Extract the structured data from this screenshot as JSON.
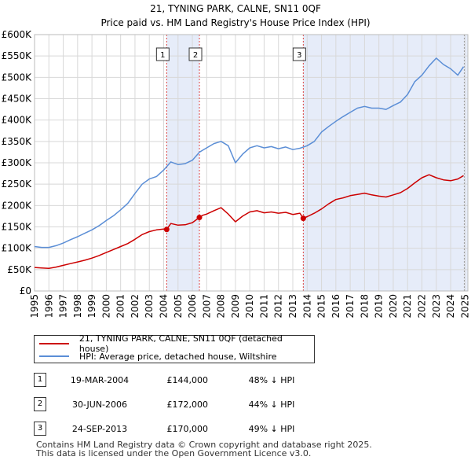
{
  "title": "21, TYNING PARK, CALNE, SN11 0QF",
  "subtitle": "Price paid vs. HM Land Registry's House Price Index (HPI)",
  "chart_data": {
    "type": "line",
    "title": "21, TYNING PARK, CALNE, SN11 0QF",
    "subtitle": "Price paid vs. HM Land Registry's House Price Index (HPI)",
    "xlabel": "",
    "ylabel": "",
    "xlim": [
      1995,
      2025.2
    ],
    "ylim": [
      0,
      600000
    ],
    "y_ticks": [
      0,
      50000,
      100000,
      150000,
      200000,
      250000,
      300000,
      350000,
      400000,
      450000,
      500000,
      550000,
      600000
    ],
    "y_tick_labels": [
      "£0",
      "£50K",
      "£100K",
      "£150K",
      "£200K",
      "£250K",
      "£300K",
      "£350K",
      "£400K",
      "£450K",
      "£500K",
      "£550K",
      "£600K"
    ],
    "x_ticks": [
      1995,
      1996,
      1997,
      1998,
      1999,
      2000,
      2001,
      2002,
      2003,
      2004,
      2005,
      2006,
      2007,
      2008,
      2009,
      2010,
      2011,
      2012,
      2013,
      2014,
      2015,
      2016,
      2017,
      2018,
      2019,
      2020,
      2021,
      2022,
      2023,
      2024,
      2025
    ],
    "grid": true,
    "series": [
      {
        "name": "21, TYNING PARK, CALNE, SN11 0QF (detached house)",
        "color": "#cc0000",
        "x": [
          1995.0,
          1995.5,
          1996.0,
          1996.5,
          1997.0,
          1997.5,
          1998.0,
          1998.5,
          1999.0,
          1999.5,
          2000.0,
          2000.5,
          2001.0,
          2001.5,
          2002.0,
          2002.5,
          2003.0,
          2003.5,
          2004.0,
          2004.21,
          2004.5,
          2005.0,
          2005.5,
          2006.0,
          2006.49,
          2006.7,
          2007.0,
          2007.5,
          2008.0,
          2008.5,
          2009.0,
          2009.5,
          2010.0,
          2010.5,
          2011.0,
          2011.5,
          2012.0,
          2012.5,
          2013.0,
          2013.5,
          2013.73,
          2014.0,
          2014.5,
          2015.0,
          2015.5,
          2016.0,
          2016.5,
          2017.0,
          2017.5,
          2018.0,
          2018.5,
          2019.0,
          2019.5,
          2020.0,
          2020.5,
          2021.0,
          2021.5,
          2022.0,
          2022.5,
          2023.0,
          2023.5,
          2024.0,
          2024.5,
          2024.9
        ],
        "values": [
          55000,
          54000,
          53000,
          56000,
          60000,
          64000,
          68000,
          72000,
          77000,
          83000,
          90000,
          97000,
          104000,
          111000,
          121000,
          132000,
          139000,
          143000,
          145000,
          144000,
          158000,
          154000,
          155000,
          160000,
          172000,
          177000,
          180000,
          188000,
          195000,
          180000,
          162000,
          175000,
          185000,
          188000,
          183000,
          185000,
          182000,
          184000,
          179000,
          182000,
          170000,
          174000,
          182000,
          192000,
          204000,
          214000,
          218000,
          223000,
          226000,
          229000,
          225000,
          222000,
          220000,
          225000,
          230000,
          240000,
          253000,
          265000,
          272000,
          265000,
          260000,
          258000,
          262000,
          270000
        ]
      },
      {
        "name": "HPI: Average price, detached house, Wiltshire",
        "color": "#5b8ed6",
        "x": [
          1995.0,
          1995.5,
          1996.0,
          1996.5,
          1997.0,
          1997.5,
          1998.0,
          1998.5,
          1999.0,
          1999.5,
          2000.0,
          2000.5,
          2001.0,
          2001.5,
          2002.0,
          2002.5,
          2003.0,
          2003.5,
          2004.0,
          2004.5,
          2005.0,
          2005.5,
          2006.0,
          2006.5,
          2007.0,
          2007.5,
          2008.0,
          2008.5,
          2009.0,
          2009.5,
          2010.0,
          2010.5,
          2011.0,
          2011.5,
          2012.0,
          2012.5,
          2013.0,
          2013.5,
          2014.0,
          2014.5,
          2015.0,
          2015.5,
          2016.0,
          2016.5,
          2017.0,
          2017.5,
          2018.0,
          2018.5,
          2019.0,
          2019.5,
          2020.0,
          2020.5,
          2021.0,
          2021.5,
          2022.0,
          2022.5,
          2023.0,
          2023.5,
          2024.0,
          2024.5,
          2024.9
        ],
        "values": [
          104000,
          102000,
          102000,
          106000,
          112000,
          120000,
          127000,
          135000,
          143000,
          153000,
          165000,
          176000,
          190000,
          205000,
          228000,
          250000,
          262000,
          268000,
          283000,
          302000,
          296000,
          298000,
          306000,
          325000,
          335000,
          345000,
          350000,
          340000,
          300000,
          320000,
          335000,
          340000,
          335000,
          338000,
          333000,
          337000,
          331000,
          334000,
          340000,
          350000,
          372000,
          385000,
          397000,
          408000,
          418000,
          428000,
          432000,
          428000,
          428000,
          425000,
          434000,
          442000,
          460000,
          490000,
          505000,
          527000,
          545000,
          530000,
          520000,
          505000,
          525000
        ]
      }
    ],
    "sale_markers": [
      {
        "label": "1",
        "x": 2004.21,
        "value": 144000
      },
      {
        "label": "2",
        "x": 2006.49,
        "value": 172000
      },
      {
        "label": "3",
        "x": 2013.73,
        "value": 170000
      }
    ],
    "shaded_spans": [
      [
        2004.21,
        2006.49
      ],
      [
        2013.73,
        2025.2
      ]
    ]
  },
  "legend": {
    "property_label": "21, TYNING PARK, CALNE, SN11 0QF (detached house)",
    "hpi_label": "HPI: Average price, detached house, Wiltshire"
  },
  "transactions": [
    {
      "num": "1",
      "date": "19-MAR-2004",
      "price": "£144,000",
      "hpi": "48% ↓ HPI"
    },
    {
      "num": "2",
      "date": "30-JUN-2006",
      "price": "£172,000",
      "hpi": "44% ↓ HPI"
    },
    {
      "num": "3",
      "date": "24-SEP-2013",
      "price": "£170,000",
      "hpi": "49% ↓ HPI"
    }
  ],
  "footer": {
    "line1": "Contains HM Land Registry data © Crown copyright and database right 2025.",
    "line2": "This data is licensed under the Open Government Licence v3.0."
  }
}
